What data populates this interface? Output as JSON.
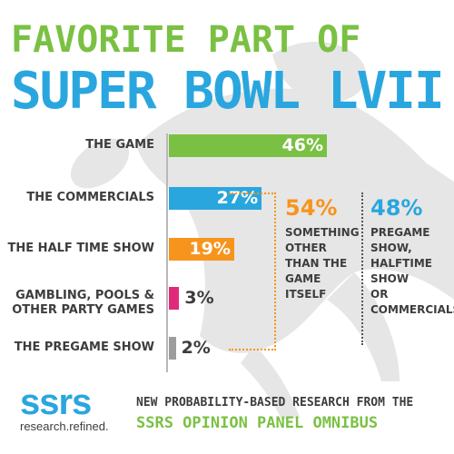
{
  "title": {
    "line1": "FAVORITE PART OF",
    "line2": "SUPER BOWL LVII"
  },
  "colors": {
    "green": "#7ac143",
    "blue": "#2aa6df",
    "orange": "#f7941d",
    "pink": "#e0297a",
    "gray": "#9d9d9d"
  },
  "chart_data": {
    "type": "bar",
    "orientation": "horizontal",
    "categories": [
      "THE GAME",
      "THE COMMERCIALS",
      "THE HALF TIME SHOW",
      "GAMBLING, POOLS & OTHER PARTY GAMES",
      "THE PREGAME SHOW"
    ],
    "category_lines": [
      [
        "THE GAME"
      ],
      [
        "THE COMMERCIALS"
      ],
      [
        "THE HALF TIME SHOW"
      ],
      [
        "GAMBLING, POOLS &",
        "OTHER PARTY GAMES"
      ],
      [
        "THE PREGAME SHOW"
      ]
    ],
    "values": [
      46,
      27,
      19,
      3,
      2
    ],
    "value_labels": [
      "46%",
      "27%",
      "19%",
      "3%",
      "2%"
    ],
    "bar_colors": [
      "#7ac143",
      "#2aa6df",
      "#f7941d",
      "#e0297a",
      "#9d9d9d"
    ],
    "unit": "%",
    "xlim": [
      0,
      46
    ],
    "grid": false,
    "annotations": [
      {
        "value": "54%",
        "text": "SOMETHING\nOTHER\nTHAN THE\nGAME\nITSELF",
        "color": "#f7941d"
      },
      {
        "value": "48%",
        "text": "PREGAME\nSHOW,\nHALFTIME\nSHOW\nOR\nCOMMERCIALS",
        "color": "#2aa6df"
      }
    ]
  },
  "footer": {
    "logo_word": "ssrs",
    "logo_tagline": "research.refined.",
    "line1": "NEW PROBABILITY-BASED RESEARCH FROM THE",
    "line2": "SSRS OPINION PANEL OMNIBUS"
  }
}
